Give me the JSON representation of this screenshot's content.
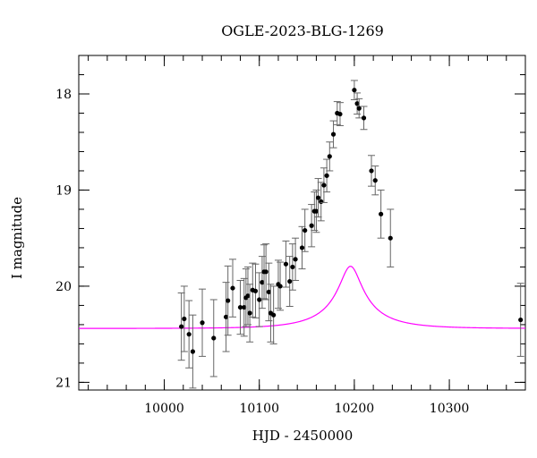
{
  "chart_data": {
    "type": "scatter",
    "title": "OGLE-2023-BLG-1269",
    "xlabel": "HJD - 2450000",
    "ylabel": "I magnitude",
    "xlim": [
      9910,
      10380
    ],
    "ylim": [
      21.08,
      17.6
    ],
    "y_inverted": true,
    "x_ticks": [
      10000,
      10100,
      10200,
      10300
    ],
    "y_ticks": [
      18,
      19,
      20,
      21
    ],
    "x_minor_step": 20,
    "y_minor_step": 0.2,
    "grid": false,
    "colors": {
      "points": "#000000",
      "model": "#ff00ff",
      "errorbars": "#666666"
    },
    "series": [
      {
        "kind": "data_with_errorbars",
        "x": [
          10018,
          10021,
          10026,
          10030,
          10040,
          10052,
          10065,
          10067,
          10072,
          10080,
          10084,
          10086,
          10088,
          10090,
          10093,
          10096,
          10100,
          10103,
          10105,
          10107,
          10110,
          10112,
          10115,
          10120,
          10122,
          10128,
          10132,
          10135,
          10138,
          10145,
          10148,
          10155,
          10158,
          10160,
          10162,
          10165,
          10168,
          10171,
          10174,
          10178,
          10182,
          10185,
          10200,
          10203,
          10205,
          10210,
          10218,
          10222,
          10228,
          10238,
          10375
        ],
        "y": [
          20.42,
          20.34,
          20.5,
          20.68,
          20.38,
          20.54,
          20.32,
          20.15,
          20.02,
          20.22,
          20.22,
          20.12,
          20.1,
          20.28,
          20.04,
          20.05,
          20.14,
          19.96,
          19.85,
          19.85,
          20.06,
          20.28,
          20.3,
          19.98,
          20.0,
          19.77,
          19.95,
          19.8,
          19.72,
          19.6,
          19.42,
          19.37,
          19.22,
          19.22,
          19.08,
          19.12,
          18.95,
          18.85,
          18.65,
          18.42,
          18.2,
          18.21,
          17.96,
          18.1,
          18.15,
          18.25,
          18.8,
          18.9,
          19.25,
          19.5,
          20.35
        ],
        "yerr": [
          0.35,
          0.34,
          0.35,
          0.38,
          0.35,
          0.4,
          0.36,
          0.36,
          0.3,
          0.28,
          0.3,
          0.3,
          0.3,
          0.3,
          0.28,
          0.28,
          0.28,
          0.27,
          0.28,
          0.29,
          0.3,
          0.3,
          0.3,
          0.25,
          0.25,
          0.24,
          0.26,
          0.24,
          0.22,
          0.22,
          0.22,
          0.22,
          0.2,
          0.22,
          0.2,
          0.2,
          0.18,
          0.17,
          0.15,
          0.14,
          0.12,
          0.12,
          0.1,
          0.11,
          0.1,
          0.12,
          0.16,
          0.15,
          0.25,
          0.3,
          0.38
        ]
      },
      {
        "kind": "model_curve",
        "t0": 10196,
        "u0": 0.2,
        "tE": 55,
        "baseline_mag": 20.44,
        "fs": 0.2
      }
    ]
  }
}
